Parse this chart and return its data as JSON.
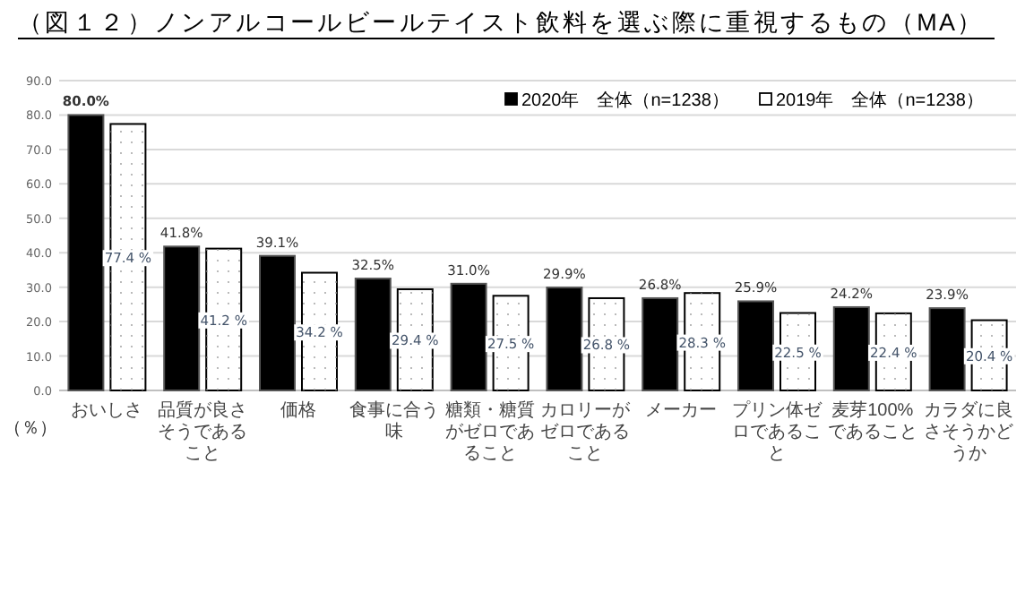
{
  "chart_data": {
    "type": "bar",
    "title": "（図１２）ノンアルコールビールテイスト飲料を選ぶ際に重視するもの（MA）",
    "ylabel": "（％）",
    "categories": [
      "おいしさ",
      "品質が良さそうであること",
      "価格",
      "食事に合う味",
      "糖類・糖質がゼロであること",
      "カロリーがゼロであること",
      "メーカー",
      "プリン体ゼロであること",
      "麦芽100%であること",
      "カラダに良さそうかどうか"
    ],
    "series": [
      {
        "name": "2020年　全体（n=1238）",
        "color": "#000000",
        "values": [
          80.0,
          41.8,
          39.1,
          32.5,
          31.0,
          29.9,
          26.8,
          25.9,
          24.2,
          23.9
        ],
        "value_labels": [
          "80.0%",
          "41.8%",
          "39.1%",
          "32.5%",
          "31.0%",
          "29.9%",
          "26.8%",
          "25.9%",
          "24.2%",
          "23.9%"
        ]
      },
      {
        "name": "2019年　全体（n=1238）",
        "color": "#ffffff",
        "values": [
          77.4,
          41.2,
          34.2,
          29.4,
          27.5,
          26.8,
          28.3,
          22.5,
          22.4,
          20.4
        ],
        "value_labels": [
          "77.4 %",
          "41.2 %",
          "34.2 %",
          "29.4 %",
          "27.5 %",
          "26.8 %",
          "28.3 %",
          "22.5 %",
          "22.4 %",
          "20.4 %"
        ]
      }
    ],
    "ylim": [
      0,
      90
    ],
    "yticks": [
      {
        "value": 0,
        "label": "0.0"
      },
      {
        "value": 10,
        "label": "10.0"
      },
      {
        "value": 20,
        "label": "20.0"
      },
      {
        "value": 30,
        "label": "30.0"
      },
      {
        "value": 40,
        "label": "40.0"
      },
      {
        "value": 50,
        "label": "50.0"
      },
      {
        "value": 60,
        "label": "60.0"
      },
      {
        "value": 70,
        "label": "70.0"
      },
      {
        "value": 80,
        "label": "80.0"
      },
      {
        "value": 90,
        "label": "90.0"
      }
    ],
    "grid": "y",
    "legend": "top right"
  }
}
